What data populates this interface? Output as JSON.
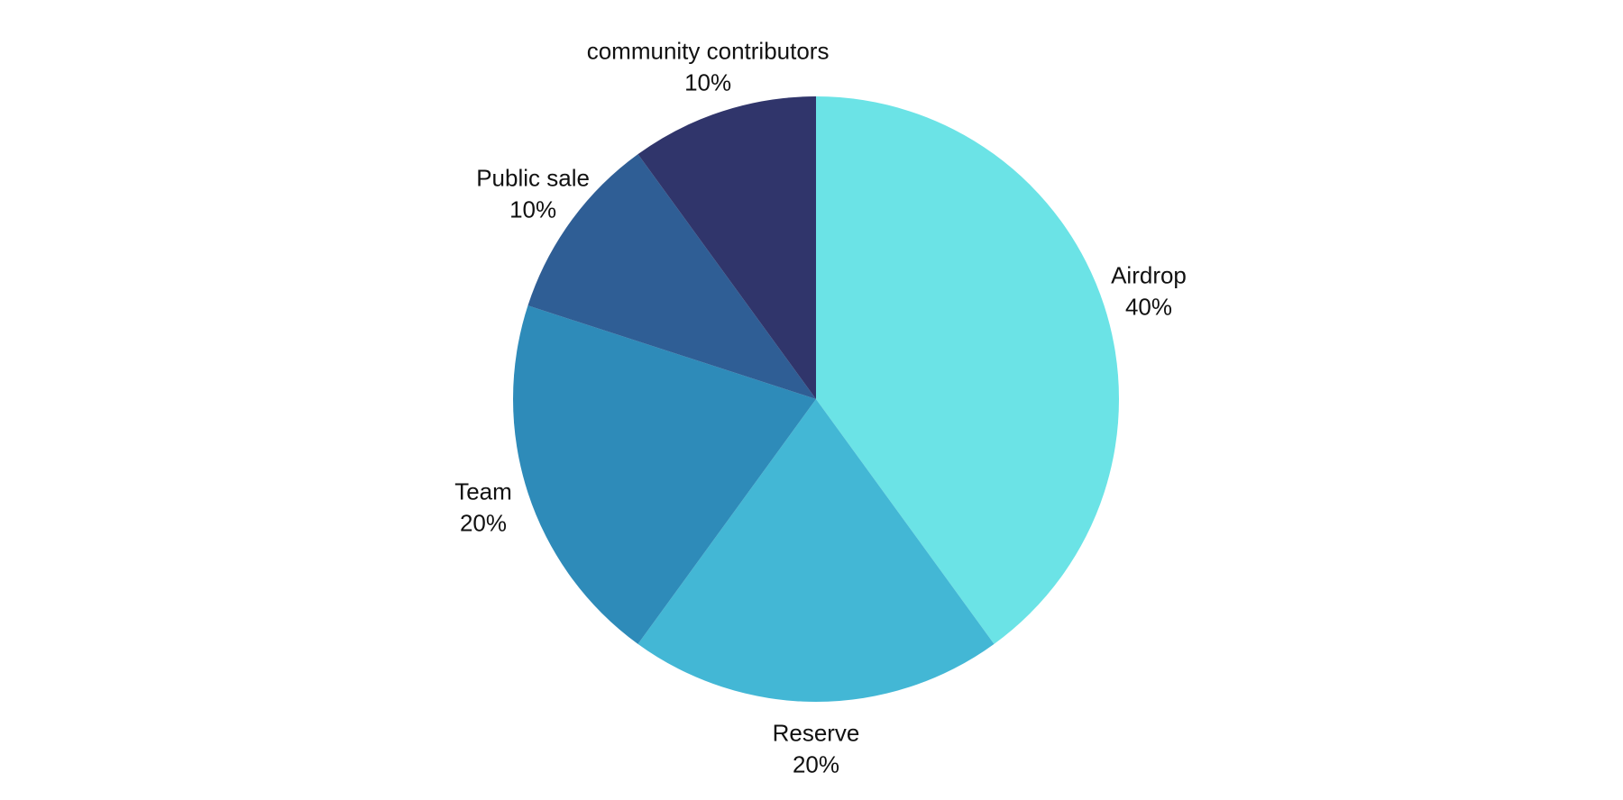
{
  "chart_data": {
    "type": "pie",
    "title": "",
    "start_angle_deg": 0,
    "direction": "clockwise",
    "slices": [
      {
        "label": "Airdrop",
        "value": 40,
        "value_label": "40%",
        "color": "#6be3e6"
      },
      {
        "label": "Reserve",
        "value": 20,
        "value_label": "20%",
        "color": "#43b7d5"
      },
      {
        "label": "Team",
        "value": 20,
        "value_label": "20%",
        "color": "#2e8bb9"
      },
      {
        "label": "Public sale",
        "value": 10,
        "value_label": "10%",
        "color": "#2f5e95"
      },
      {
        "label": "community contributors",
        "value": 10,
        "value_label": "10%",
        "color": "#30356b"
      }
    ]
  }
}
